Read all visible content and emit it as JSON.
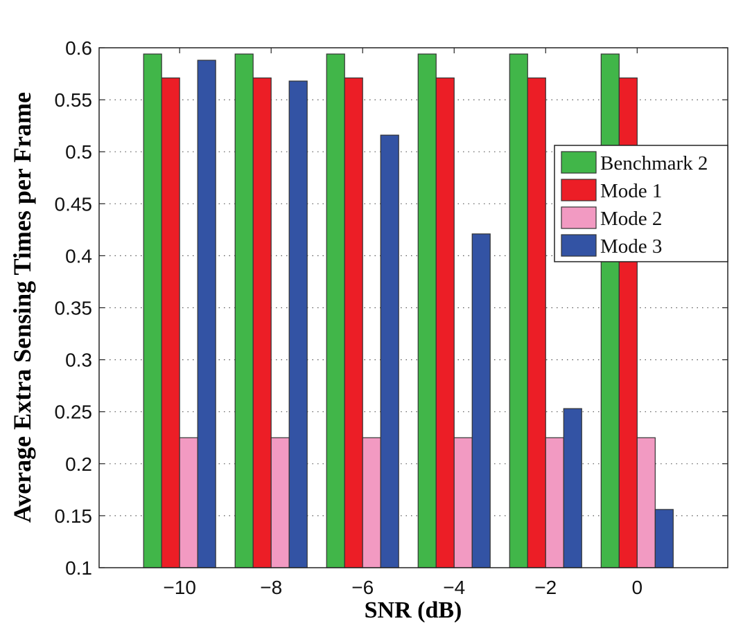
{
  "chart_data": {
    "type": "bar",
    "title": "",
    "xlabel": "SNR (dB)",
    "ylabel": "Average Extra Sensing Times per Frame",
    "categories": [
      "−10",
      "−8",
      "−6",
      "−4",
      "−2",
      "0"
    ],
    "x": [
      -10,
      -8,
      -6,
      -4,
      -2,
      0
    ],
    "ylim": [
      0.1,
      0.6
    ],
    "yticks": [
      "0.1",
      "0.15",
      "0.2",
      "0.25",
      "0.3",
      "0.35",
      "0.4",
      "0.45",
      "0.5",
      "0.55",
      "0.6"
    ],
    "grid": "horizontal dotted",
    "legend_position": "right",
    "series": [
      {
        "name": "Benchmark 2",
        "color": "#41b649",
        "values": [
          0.594,
          0.594,
          0.594,
          0.594,
          0.594,
          0.594
        ]
      },
      {
        "name": "Mode 1",
        "color": "#ec1e26",
        "values": [
          0.571,
          0.571,
          0.571,
          0.571,
          0.571,
          0.571
        ]
      },
      {
        "name": "Mode 2",
        "color": "#f29ac2",
        "values": [
          0.225,
          0.225,
          0.225,
          0.225,
          0.225,
          0.225
        ]
      },
      {
        "name": "Mode 3",
        "color": "#3353a4",
        "values": [
          0.588,
          0.568,
          0.516,
          0.421,
          0.253,
          0.156
        ]
      }
    ]
  }
}
